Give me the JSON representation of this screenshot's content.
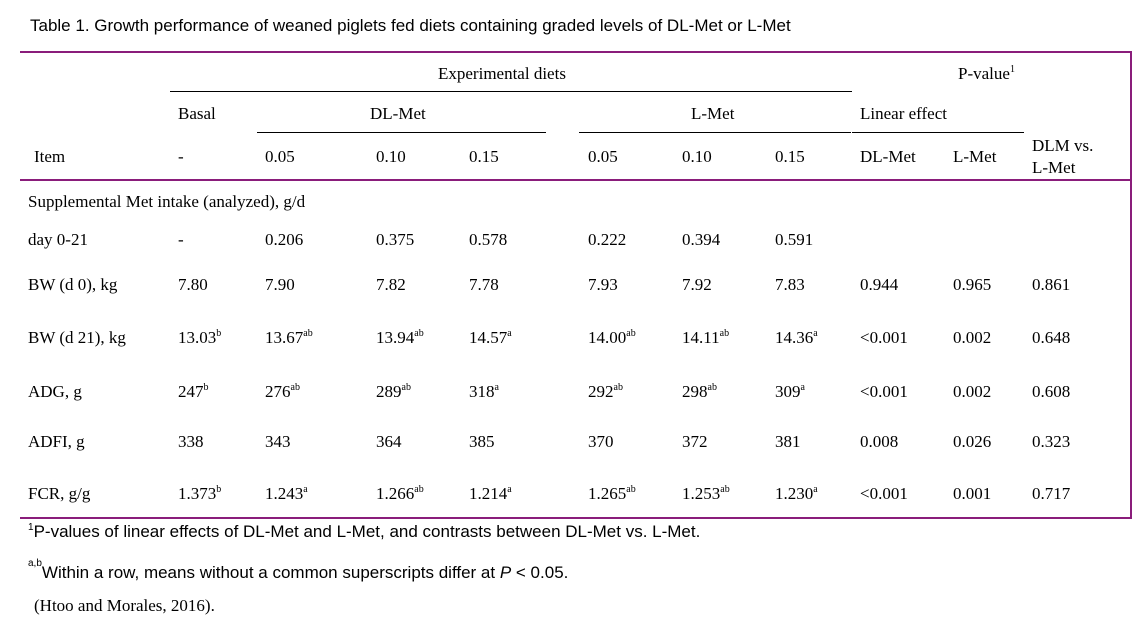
{
  "title": "Table 1.  Growth performance of weaned piglets fed diets containing graded levels of DL-Met or L-Met",
  "header": {
    "experimental_diets": "Experimental diets",
    "p_value": "P-value",
    "p_value_sup": "1",
    "basal": "Basal",
    "dl_met": "DL-Met",
    "l_met": "L-Met",
    "linear_effect": "Linear effect",
    "item": "Item",
    "levels": [
      "-",
      "0.05",
      "0.10",
      "0.15",
      "0.05",
      "0.10",
      "0.15"
    ],
    "p_cols": [
      "DL-Met",
      "L-Met"
    ],
    "dlm_vs": [
      "DLM vs.",
      "L-Met"
    ]
  },
  "section_label": "Supplemental Met intake (analyzed), g/d",
  "rows": [
    {
      "label": "day 0-21",
      "cells": [
        [
          "-",
          ""
        ],
        [
          "0.206",
          ""
        ],
        [
          "0.375",
          ""
        ],
        [
          "0.578",
          ""
        ],
        [
          "0.222",
          ""
        ],
        [
          "0.394",
          ""
        ],
        [
          "0.591",
          ""
        ]
      ],
      "p": [
        "",
        "",
        ""
      ]
    },
    {
      "label": "BW (d 0), kg",
      "cells": [
        [
          "7.80",
          ""
        ],
        [
          "7.90",
          ""
        ],
        [
          "7.82",
          ""
        ],
        [
          "7.78",
          ""
        ],
        [
          "7.93",
          ""
        ],
        [
          "7.92",
          ""
        ],
        [
          "7.83",
          ""
        ]
      ],
      "p": [
        "0.944",
        "0.965",
        "0.861"
      ]
    },
    {
      "label": "BW (d 21), kg",
      "cells": [
        [
          "13.03",
          "b"
        ],
        [
          "13.67",
          "ab"
        ],
        [
          "13.94",
          "ab"
        ],
        [
          "14.57",
          "a"
        ],
        [
          "14.00",
          "ab"
        ],
        [
          "14.11",
          "ab"
        ],
        [
          "14.36",
          "a"
        ]
      ],
      "p": [
        "<0.001",
        "0.002",
        "0.648"
      ]
    },
    {
      "label": "ADG, g",
      "cells": [
        [
          "247",
          "b"
        ],
        [
          "276",
          "ab"
        ],
        [
          "289",
          "ab"
        ],
        [
          "318",
          "a"
        ],
        [
          "292",
          "ab"
        ],
        [
          "298",
          "ab"
        ],
        [
          "309",
          "a"
        ]
      ],
      "p": [
        "<0.001",
        "0.002",
        "0.608"
      ]
    },
    {
      "label": "ADFI, g",
      "cells": [
        [
          "338",
          ""
        ],
        [
          "343",
          ""
        ],
        [
          "364",
          ""
        ],
        [
          "385",
          ""
        ],
        [
          "370",
          ""
        ],
        [
          "372",
          ""
        ],
        [
          "381",
          ""
        ]
      ],
      "p": [
        "0.008",
        "0.026",
        "0.323"
      ]
    },
    {
      "label": "FCR, g/g",
      "cells": [
        [
          "1.373",
          "b"
        ],
        [
          "1.243",
          "a"
        ],
        [
          "1.266",
          "ab"
        ],
        [
          "1.214",
          "a"
        ],
        [
          "1.265",
          "ab"
        ],
        [
          "1.253",
          "ab"
        ],
        [
          "1.230",
          "a"
        ]
      ],
      "p": [
        "<0.001",
        "0.001",
        "0.717"
      ]
    }
  ],
  "footnotes": {
    "note1_sup": "1",
    "note1": "P-values of linear effects of DL-Met and L-Met, and contrasts between DL-Met vs. L-Met.",
    "note2_sup": "a,b",
    "note2_a": "Within a row, means without a common superscripts differ at ",
    "note2_p": "P",
    "note2_b": " < 0.05.",
    "source": "(Htoo and Morales, 2016)."
  }
}
